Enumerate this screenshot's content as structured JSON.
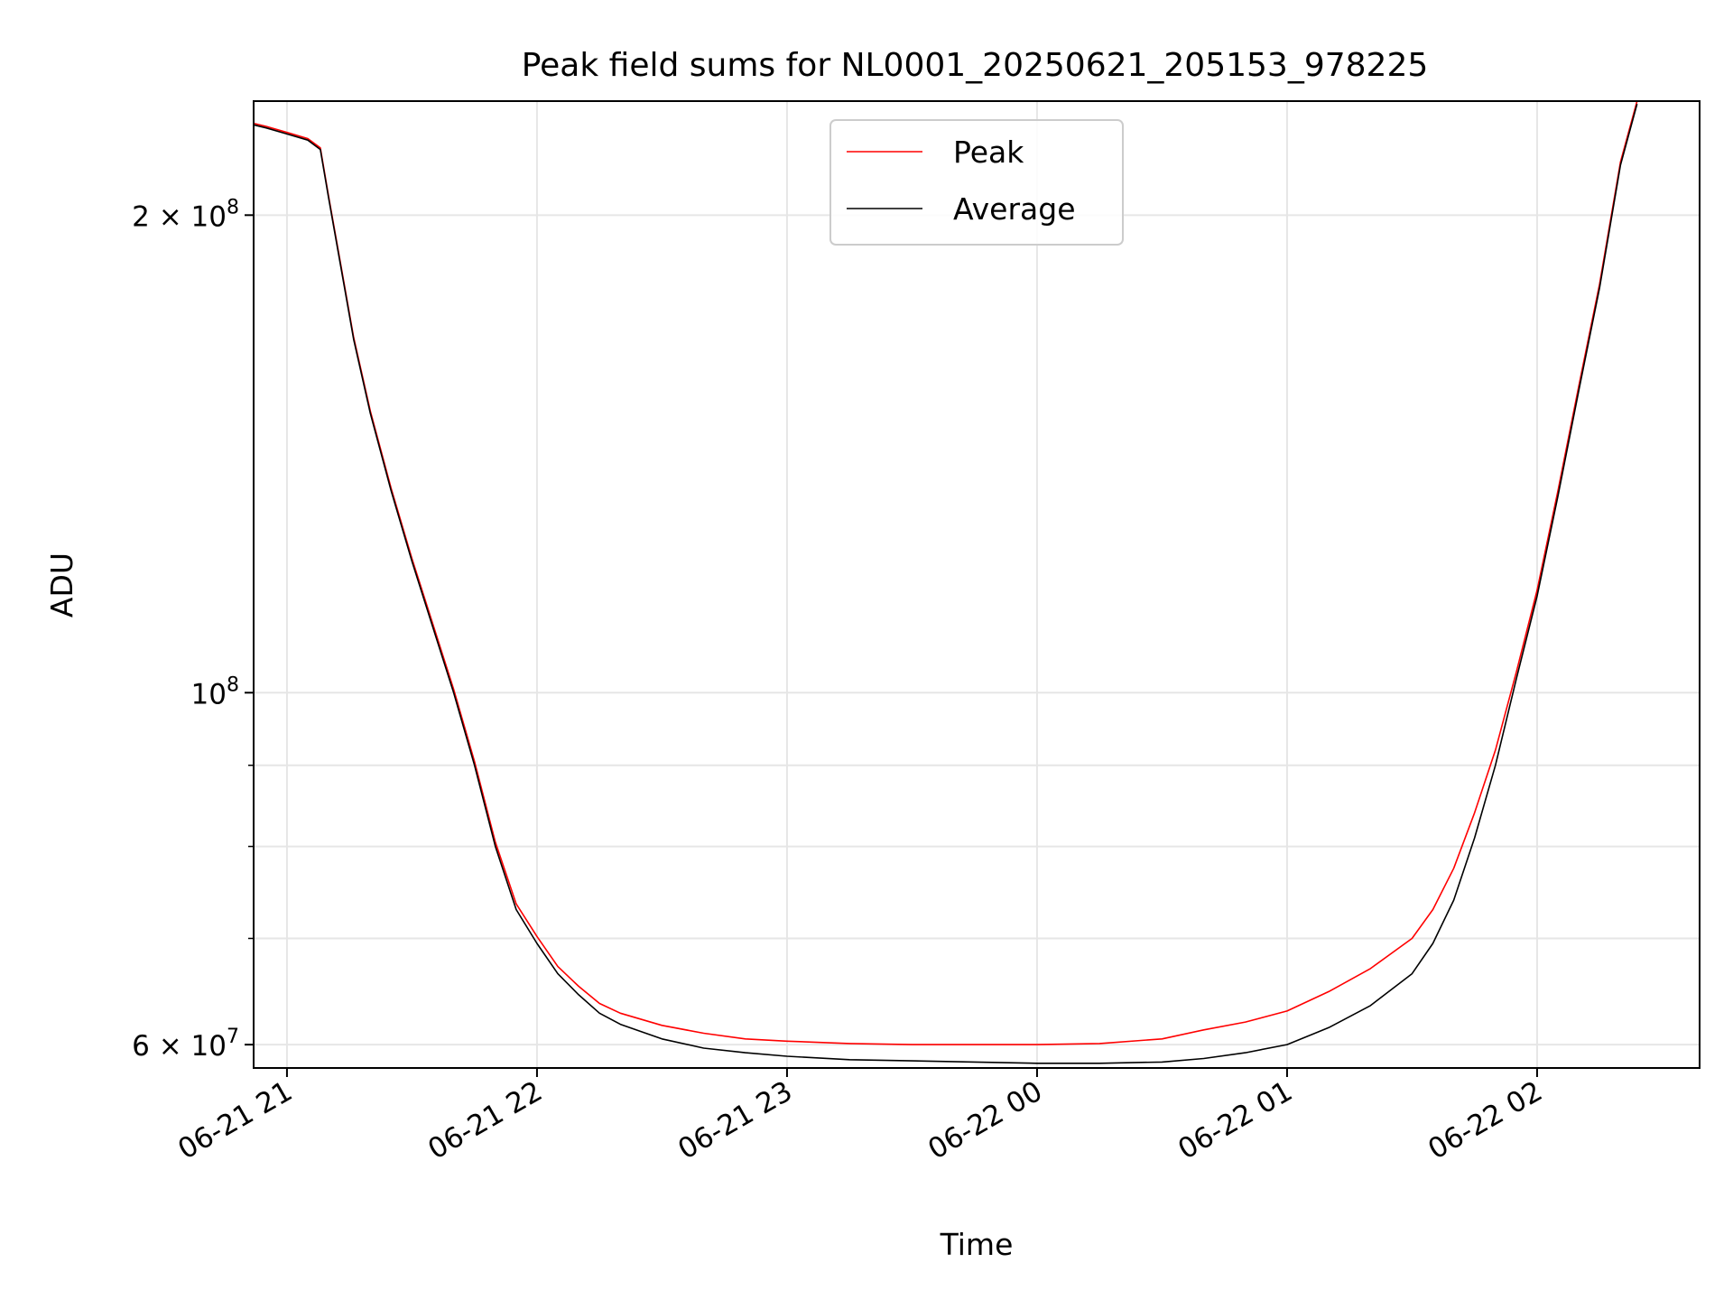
{
  "chart_data": {
    "type": "line",
    "title": "Peak field sums for NL0001_20250621_205153_978225",
    "xlabel": "Time",
    "ylabel": "ADU",
    "yscale": "log",
    "ylim": [
      58000000,
      236000000
    ],
    "xlim": [
      "2025-06-21 20:52",
      "2025-06-22 02:39"
    ],
    "grid": true,
    "legend_position": "top-center",
    "x_ticks": [
      {
        "value": "2025-06-21 21:00",
        "label": "06-21 21"
      },
      {
        "value": "2025-06-21 22:00",
        "label": "06-21 22"
      },
      {
        "value": "2025-06-21 23:00",
        "label": "06-21 23"
      },
      {
        "value": "2025-06-22 00:00",
        "label": "06-22 00"
      },
      {
        "value": "2025-06-22 01:00",
        "label": "06-22 01"
      },
      {
        "value": "2025-06-22 02:00",
        "label": "06-22 02"
      }
    ],
    "y_major_ticks": [
      {
        "value": 60000000,
        "label_base": "6 × 10",
        "label_exp": "7"
      },
      {
        "value": 100000000,
        "label_base": "10",
        "label_exp": "8"
      },
      {
        "value": 200000000,
        "label_base": "2 × 10",
        "label_exp": "8"
      }
    ],
    "y_minor_ticks": [
      70000000,
      80000000,
      90000000
    ],
    "series": [
      {
        "name": "Average",
        "color": "#000000",
        "x": [
          "2025-06-21 20:52",
          "2025-06-21 20:55",
          "2025-06-21 21:00",
          "2025-06-21 21:05",
          "2025-06-21 21:08",
          "2025-06-21 21:10",
          "2025-06-21 21:13",
          "2025-06-21 21:16",
          "2025-06-21 21:20",
          "2025-06-21 21:25",
          "2025-06-21 21:30",
          "2025-06-21 21:35",
          "2025-06-21 21:40",
          "2025-06-21 21:45",
          "2025-06-21 21:50",
          "2025-06-21 21:55",
          "2025-06-21 22:00",
          "2025-06-21 22:05",
          "2025-06-21 22:10",
          "2025-06-21 22:15",
          "2025-06-21 22:20",
          "2025-06-21 22:30",
          "2025-06-21 22:40",
          "2025-06-21 22:50",
          "2025-06-21 23:00",
          "2025-06-21 23:15",
          "2025-06-21 23:30",
          "2025-06-21 23:45",
          "2025-06-22 00:00",
          "2025-06-22 00:15",
          "2025-06-22 00:30",
          "2025-06-22 00:40",
          "2025-06-22 00:50",
          "2025-06-22 01:00",
          "2025-06-22 01:10",
          "2025-06-22 01:20",
          "2025-06-22 01:30",
          "2025-06-22 01:35",
          "2025-06-22 01:40",
          "2025-06-22 01:45",
          "2025-06-22 01:50",
          "2025-06-22 01:55",
          "2025-06-22 02:00",
          "2025-06-22 02:05",
          "2025-06-22 02:10",
          "2025-06-22 02:15",
          "2025-06-22 02:20",
          "2025-06-22 02:24"
        ],
        "values": [
          228000000,
          227000000,
          225000000,
          223000000,
          220000000,
          205000000,
          185000000,
          167000000,
          150000000,
          134000000,
          121000000,
          110000000,
          100000000,
          90000000,
          80000000,
          73000000,
          69500000,
          66500000,
          64500000,
          62800000,
          61800000,
          60500000,
          59700000,
          59300000,
          59000000,
          58700000,
          58600000,
          58500000,
          58400000,
          58400000,
          58500000,
          58800000,
          59300000,
          60000000,
          61500000,
          63500000,
          66500000,
          69500000,
          74000000,
          81000000,
          90000000,
          102000000,
          115000000,
          133000000,
          155000000,
          180000000,
          215000000,
          235000000
        ]
      },
      {
        "name": "Peak",
        "color": "#ff0000",
        "x": [
          "2025-06-21 20:52",
          "2025-06-21 20:55",
          "2025-06-21 21:00",
          "2025-06-21 21:05",
          "2025-06-21 21:08",
          "2025-06-21 21:10",
          "2025-06-21 21:13",
          "2025-06-21 21:16",
          "2025-06-21 21:20",
          "2025-06-21 21:25",
          "2025-06-21 21:30",
          "2025-06-21 21:35",
          "2025-06-21 21:40",
          "2025-06-21 21:45",
          "2025-06-21 21:50",
          "2025-06-21 21:55",
          "2025-06-21 22:00",
          "2025-06-21 22:05",
          "2025-06-21 22:10",
          "2025-06-21 22:15",
          "2025-06-21 22:20",
          "2025-06-21 22:30",
          "2025-06-21 22:40",
          "2025-06-21 22:50",
          "2025-06-21 23:00",
          "2025-06-21 23:15",
          "2025-06-21 23:30",
          "2025-06-21 23:45",
          "2025-06-22 00:00",
          "2025-06-22 00:15",
          "2025-06-22 00:30",
          "2025-06-22 00:40",
          "2025-06-22 00:50",
          "2025-06-22 01:00",
          "2025-06-22 01:10",
          "2025-06-22 01:20",
          "2025-06-22 01:30",
          "2025-06-22 01:35",
          "2025-06-22 01:40",
          "2025-06-22 01:45",
          "2025-06-22 01:50",
          "2025-06-22 01:55",
          "2025-06-22 02:00",
          "2025-06-22 02:05",
          "2025-06-22 02:10",
          "2025-06-22 02:15",
          "2025-06-22 02:20",
          "2025-06-22 02:24"
        ],
        "values": [
          228500000,
          227500000,
          225500000,
          223500000,
          220500000,
          205500000,
          185500000,
          167500000,
          150500000,
          134500000,
          121500000,
          110500000,
          100500000,
          90500000,
          80500000,
          73600000,
          70200000,
          67200000,
          65300000,
          63700000,
          62800000,
          61700000,
          61000000,
          60500000,
          60300000,
          60100000,
          60000000,
          60000000,
          60000000,
          60100000,
          60500000,
          61300000,
          62000000,
          63000000,
          64800000,
          67000000,
          70000000,
          73000000,
          77500000,
          84000000,
          92000000,
          103000000,
          116000000,
          134000000,
          156000000,
          181000000,
          216000000,
          236000000
        ]
      }
    ]
  }
}
